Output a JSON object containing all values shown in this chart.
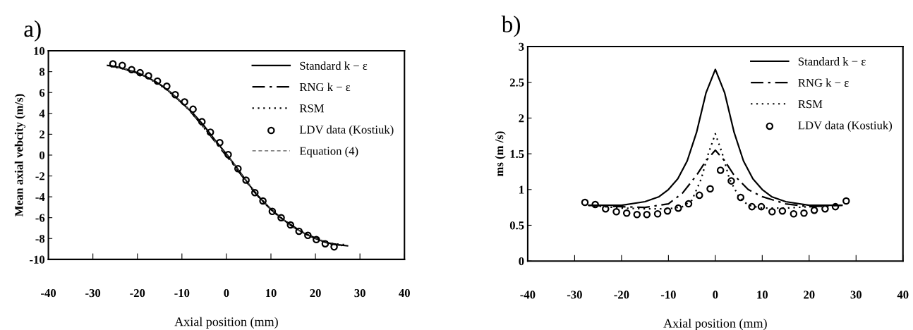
{
  "chart_data": [
    {
      "type": "line",
      "title": "a)",
      "xlabel": "Axial position (mm)",
      "ylabel": "Mean axial vebcity (m/s)",
      "xlim": [
        -40,
        40
      ],
      "ylim": [
        -10,
        10
      ],
      "xticks": [
        -40,
        -30,
        -20,
        -10,
        0,
        10,
        20,
        30,
        40
      ],
      "yticks": [
        -10,
        -8,
        -6,
        -4,
        -2,
        0,
        2,
        4,
        6,
        8,
        10
      ],
      "legend": "top right",
      "grid": false,
      "series": [
        {
          "name": "Standard k − ε",
          "color": "#000000",
          "line_style": "solid",
          "x": [
            -26.7,
            -25,
            -22.5,
            -20,
            -17.5,
            -15,
            -12.5,
            -10,
            -7.5,
            -5,
            -2.5,
            0,
            2.5,
            5,
            7.5,
            10,
            12.5,
            15,
            17.5,
            20,
            22.5,
            25,
            27.2
          ],
          "values": [
            8.6,
            8.5,
            8.2,
            7.9,
            7.4,
            6.8,
            6.0,
            5.0,
            4.0,
            2.8,
            1.4,
            0.1,
            -1.3,
            -2.8,
            -4.1,
            -5.2,
            -6.1,
            -6.9,
            -7.5,
            -8.0,
            -8.4,
            -8.6,
            -8.7
          ]
        },
        {
          "name": "RNG k − ε",
          "color": "#000000",
          "line_style": "dashdot",
          "x": [
            -26.5,
            -24,
            -21.5,
            -19,
            -16.5,
            -14,
            -11.5,
            -9,
            -6.5,
            -4,
            -1.5,
            1,
            3.5,
            6,
            8.5,
            11,
            13.5,
            16,
            18.5,
            21,
            23.5,
            26.5
          ],
          "values": [
            8.6,
            8.4,
            8.1,
            7.7,
            7.2,
            6.5,
            5.6,
            4.6,
            3.4,
            2.1,
            0.7,
            -0.6,
            -2.0,
            -3.4,
            -4.6,
            -5.6,
            -6.4,
            -7.1,
            -7.7,
            -8.1,
            -8.5,
            -8.7
          ]
        },
        {
          "name": "RSM",
          "color": "#000000",
          "line_style": "dotted",
          "x": [
            -26,
            -23.5,
            -21,
            -18.5,
            -16,
            -13.5,
            -11,
            -8.5,
            -6,
            -3.5,
            -1,
            1.5,
            4,
            6.5,
            9,
            11.5,
            14,
            16.5,
            19,
            21.5,
            24,
            26.8
          ],
          "values": [
            8.5,
            8.3,
            8.0,
            7.6,
            7.0,
            6.3,
            5.4,
            4.4,
            3.1,
            1.8,
            0.5,
            -0.8,
            -2.2,
            -3.6,
            -4.8,
            -5.8,
            -6.6,
            -7.3,
            -7.8,
            -8.2,
            -8.5,
            -8.6
          ]
        },
        {
          "name": "LDV data (Kostiuk)",
          "color": "#000000",
          "type": "scatter",
          "marker": "circle",
          "x": [
            -25.5,
            -23.4,
            -21.3,
            -19.4,
            -17.5,
            -15.5,
            -13.4,
            -11.5,
            -9.4,
            -7.5,
            -5.5,
            -3.6,
            -1.5,
            0.4,
            2.6,
            4.4,
            6.4,
            8.2,
            10.3,
            12.3,
            14.4,
            16.3,
            18.3,
            20.2,
            22.2,
            24.2
          ],
          "values": [
            8.75,
            8.6,
            8.2,
            7.9,
            7.6,
            7.1,
            6.6,
            5.8,
            5.1,
            4.4,
            3.2,
            2.2,
            1.2,
            0.05,
            -1.3,
            -2.4,
            -3.6,
            -4.4,
            -5.4,
            -6.0,
            -6.7,
            -7.3,
            -7.7,
            -8.1,
            -8.5,
            -8.8
          ]
        },
        {
          "name": "Equation (4)",
          "color": "#555555",
          "line_style": "dashed",
          "x": [
            -25.8,
            -23,
            -20.5,
            -18,
            -15.5,
            -13,
            -10.5,
            -8,
            -5.5,
            -3,
            -0.5,
            2,
            4.5,
            7,
            9.5,
            12,
            14.5,
            17,
            19.5,
            22,
            24.5,
            26
          ],
          "values": [
            8.5,
            8.3,
            7.9,
            7.5,
            6.9,
            6.2,
            5.2,
            4.2,
            2.9,
            1.6,
            0.3,
            -1.0,
            -2.5,
            -3.8,
            -5.0,
            -5.9,
            -6.8,
            -7.4,
            -7.9,
            -8.3,
            -8.6,
            -8.7
          ]
        }
      ]
    },
    {
      "type": "line",
      "title": "b)",
      "xlabel": "Axial position (mm)",
      "ylabel": "ms (m /s)",
      "xlim": [
        -40,
        40
      ],
      "ylim": [
        0,
        3
      ],
      "xticks": [
        -40,
        -30,
        -20,
        -10,
        0,
        10,
        20,
        30,
        40
      ],
      "yticks": [
        0,
        0.5,
        1,
        1.5,
        2,
        2.5,
        3
      ],
      "legend": "top right",
      "grid": false,
      "series": [
        {
          "name": "Standard k − ε",
          "color": "#000000",
          "line_style": "solid",
          "x": [
            -27,
            -20,
            -15,
            -12,
            -10,
            -8,
            -6,
            -4,
            -2,
            0,
            2,
            4,
            6,
            8,
            10,
            12,
            15,
            20,
            27
          ],
          "values": [
            0.78,
            0.78,
            0.83,
            0.9,
            1.0,
            1.15,
            1.4,
            1.8,
            2.35,
            2.68,
            2.35,
            1.8,
            1.4,
            1.15,
            1.0,
            0.9,
            0.83,
            0.78,
            0.78
          ]
        },
        {
          "name": "RNG k − ε",
          "color": "#000000",
          "line_style": "dashdot",
          "x": [
            -27,
            -20,
            -15,
            -10,
            -7,
            -4,
            -2,
            0,
            2,
            4,
            7,
            10,
            15,
            20,
            27
          ],
          "values": [
            0.78,
            0.76,
            0.75,
            0.8,
            0.95,
            1.2,
            1.4,
            1.55,
            1.4,
            1.2,
            1.0,
            0.9,
            0.8,
            0.76,
            0.78
          ]
        },
        {
          "name": "RSM",
          "color": "#000000",
          "line_style": "dotted",
          "x": [
            -27,
            -20,
            -15,
            -10,
            -7,
            -5,
            -3,
            -1.5,
            0,
            1.5,
            3,
            5,
            7,
            10,
            15,
            20,
            27
          ],
          "values": [
            0.78,
            0.74,
            0.73,
            0.73,
            0.76,
            0.85,
            1.15,
            1.5,
            1.78,
            1.5,
            1.15,
            0.9,
            0.78,
            0.74,
            0.74,
            0.76,
            0.78
          ]
        },
        {
          "name": "LDV data (Kostiuk)",
          "color": "#000000",
          "type": "scatter",
          "marker": "circle",
          "x": [
            -27.8,
            -25.6,
            -23.4,
            -21.1,
            -18.9,
            -16.7,
            -14.6,
            -12.3,
            -10.2,
            -7.9,
            -5.7,
            -3.4,
            -1.1,
            1.1,
            3.4,
            5.4,
            7.8,
            9.8,
            12.1,
            14.3,
            16.7,
            18.9,
            21.1,
            23.4,
            25.6,
            27.9
          ],
          "values": [
            0.82,
            0.79,
            0.73,
            0.69,
            0.67,
            0.65,
            0.65,
            0.66,
            0.7,
            0.74,
            0.8,
            0.92,
            1.01,
            1.27,
            1.12,
            0.89,
            0.76,
            0.76,
            0.69,
            0.7,
            0.66,
            0.67,
            0.71,
            0.73,
            0.76,
            0.84
          ]
        }
      ]
    }
  ]
}
